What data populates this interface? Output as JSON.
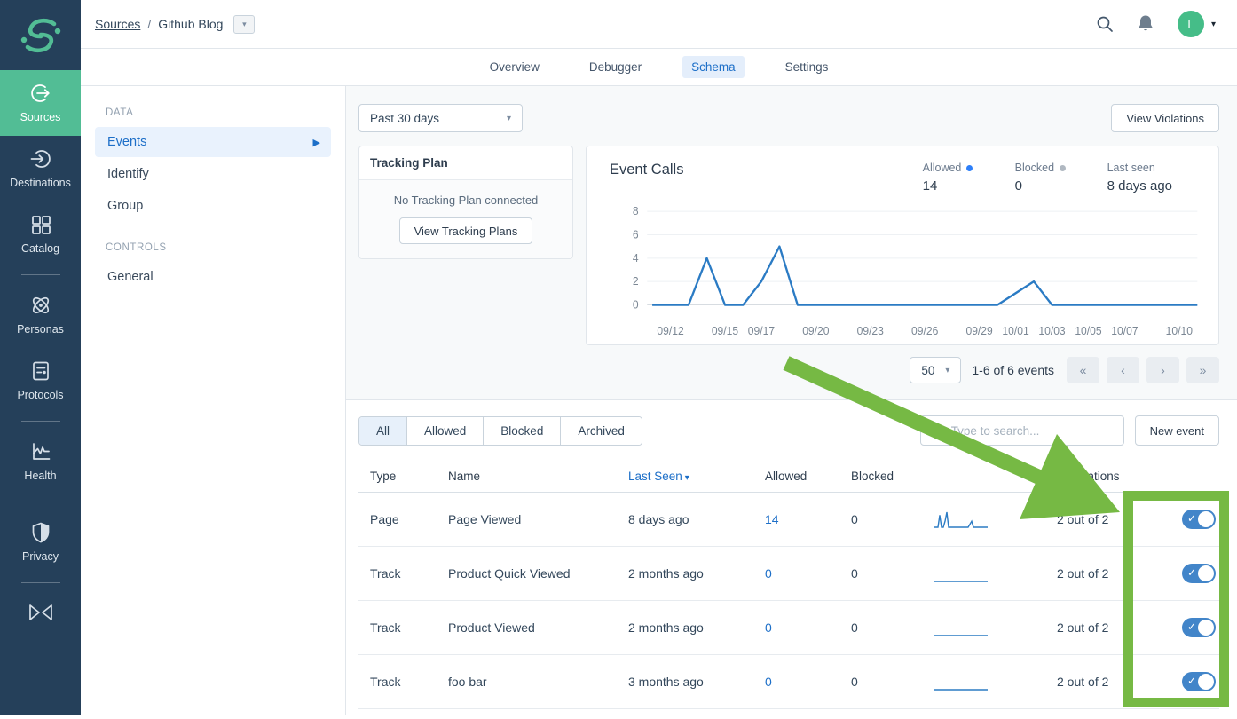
{
  "colors": {
    "sidebar_bg": "#25405A",
    "accent_green": "#52BD95",
    "link_blue": "#1D6FC8",
    "toggle_blue": "#4285C9",
    "annotation_green": "#76B944",
    "chart_line": "#2B7BC4",
    "allowed_dot": "#2D7FF9",
    "blocked_dot": "#B0B8C1"
  },
  "sidebar": {
    "items": [
      {
        "label": "Sources",
        "icon": "sources-icon",
        "active": true
      },
      {
        "label": "Destinations",
        "icon": "destinations-icon",
        "active": false
      },
      {
        "label": "Catalog",
        "icon": "catalog-icon",
        "active": false
      },
      {
        "label": "Personas",
        "icon": "personas-icon",
        "active": false
      },
      {
        "label": "Protocols",
        "icon": "protocols-icon",
        "active": false
      },
      {
        "label": "Health",
        "icon": "health-icon",
        "active": false
      },
      {
        "label": "Privacy",
        "icon": "privacy-icon",
        "active": false
      }
    ]
  },
  "topbar": {
    "breadcrumb": {
      "root": "Sources",
      "separator": "/",
      "current": "Github Blog"
    },
    "avatar_initial": "L"
  },
  "tabs": {
    "items": [
      {
        "label": "Overview",
        "active": false
      },
      {
        "label": "Debugger",
        "active": false
      },
      {
        "label": "Schema",
        "active": true
      },
      {
        "label": "Settings",
        "active": false
      }
    ]
  },
  "left_panel": {
    "data_heading": "DATA",
    "data_items": [
      {
        "label": "Events",
        "active": true
      },
      {
        "label": "Identify",
        "active": false
      },
      {
        "label": "Group",
        "active": false
      }
    ],
    "controls_heading": "CONTROLS",
    "controls_items": [
      {
        "label": "General",
        "active": false
      }
    ]
  },
  "toolbar": {
    "date_range": "Past 30 days",
    "view_violations_label": "View Violations"
  },
  "tracking_plan": {
    "title": "Tracking Plan",
    "empty_text": "No Tracking Plan connected",
    "button_label": "View Tracking Plans"
  },
  "event_calls": {
    "title": "Event Calls",
    "stats": [
      {
        "label": "Allowed",
        "value": "14"
      },
      {
        "label": "Blocked",
        "value": "0"
      },
      {
        "label": "Last seen",
        "value": "8 days ago"
      }
    ]
  },
  "chart_data": {
    "type": "line",
    "title": "Event Calls",
    "x": [
      "09/11",
      "09/12",
      "09/13",
      "09/14",
      "09/15",
      "09/16",
      "09/17",
      "09/18",
      "09/19",
      "09/20",
      "09/21",
      "09/22",
      "09/23",
      "09/24",
      "09/25",
      "09/26",
      "09/27",
      "09/28",
      "09/29",
      "09/30",
      "10/01",
      "10/02",
      "10/03",
      "10/04",
      "10/05",
      "10/06",
      "10/07",
      "10/08",
      "10/09",
      "10/10",
      "10/11"
    ],
    "series": [
      {
        "name": "Allowed",
        "values": [
          0,
          0,
          0,
          4,
          0,
          0,
          2,
          5,
          0,
          0,
          0,
          0,
          0,
          0,
          0,
          0,
          0,
          0,
          0,
          0,
          1,
          2,
          0,
          0,
          0,
          0,
          0,
          0,
          0,
          0,
          0
        ]
      }
    ],
    "x_tick_labels": [
      "09/12",
      "09/15",
      "09/17",
      "09/20",
      "09/23",
      "09/26",
      "09/29",
      "10/01",
      "10/03",
      "10/05",
      "10/07",
      "10/10"
    ],
    "x_tick_indices": [
      1,
      4,
      6,
      9,
      12,
      15,
      18,
      20,
      22,
      24,
      26,
      29
    ],
    "y_ticks": [
      0,
      2,
      4,
      6,
      8
    ],
    "ylim": [
      0,
      8
    ],
    "grid": true,
    "legend_position": "top-right"
  },
  "pagination": {
    "page_size": "50",
    "range_text": "1-6 of 6 events",
    "first": "«",
    "prev": "‹",
    "next": "›",
    "last": "»"
  },
  "events_toolbar": {
    "filter_tabs": [
      {
        "label": "All",
        "active": true
      },
      {
        "label": "Allowed",
        "active": false
      },
      {
        "label": "Blocked",
        "active": false
      },
      {
        "label": "Archived",
        "active": false
      }
    ],
    "search_placeholder": "Type to search...",
    "new_event_label": "New event"
  },
  "table": {
    "headers": {
      "type": "Type",
      "name": "Name",
      "last_seen": "Last Seen",
      "allowed": "Allowed",
      "blocked": "Blocked",
      "integrations": "Integrations"
    },
    "sorted_by": "Last Seen",
    "rows": [
      {
        "type": "Page",
        "name": "Page Viewed",
        "last_seen": "8 days ago",
        "allowed": "14",
        "blocked": "0",
        "integrations": "2 out of 2",
        "enabled": true,
        "spark": [
          0,
          0,
          0,
          4,
          0,
          0,
          2,
          5,
          0,
          0,
          0,
          0,
          0,
          0,
          0,
          0,
          0,
          0,
          0,
          0,
          1,
          2,
          0,
          0,
          0,
          0,
          0,
          0,
          0,
          0,
          0
        ]
      },
      {
        "type": "Track",
        "name": "Product Quick Viewed",
        "last_seen": "2 months ago",
        "allowed": "0",
        "blocked": "0",
        "integrations": "2 out of 2",
        "enabled": true,
        "spark": [
          0,
          0,
          0,
          0,
          0,
          0,
          0,
          0,
          0,
          0,
          0,
          0,
          0,
          0,
          0,
          0,
          0,
          0,
          0,
          0,
          0,
          0,
          0,
          0,
          0,
          0,
          0,
          0,
          0,
          0,
          0
        ]
      },
      {
        "type": "Track",
        "name": "Product Viewed",
        "last_seen": "2 months ago",
        "allowed": "0",
        "blocked": "0",
        "integrations": "2 out of 2",
        "enabled": true,
        "spark": [
          0,
          0,
          0,
          0,
          0,
          0,
          0,
          0,
          0,
          0,
          0,
          0,
          0,
          0,
          0,
          0,
          0,
          0,
          0,
          0,
          0,
          0,
          0,
          0,
          0,
          0,
          0,
          0,
          0,
          0,
          0
        ]
      },
      {
        "type": "Track",
        "name": "foo bar",
        "last_seen": "3 months ago",
        "allowed": "0",
        "blocked": "0",
        "integrations": "2 out of 2",
        "enabled": true,
        "spark": [
          0,
          0,
          0,
          0,
          0,
          0,
          0,
          0,
          0,
          0,
          0,
          0,
          0,
          0,
          0,
          0,
          0,
          0,
          0,
          0,
          0,
          0,
          0,
          0,
          0,
          0,
          0,
          0,
          0,
          0,
          0
        ]
      }
    ]
  }
}
